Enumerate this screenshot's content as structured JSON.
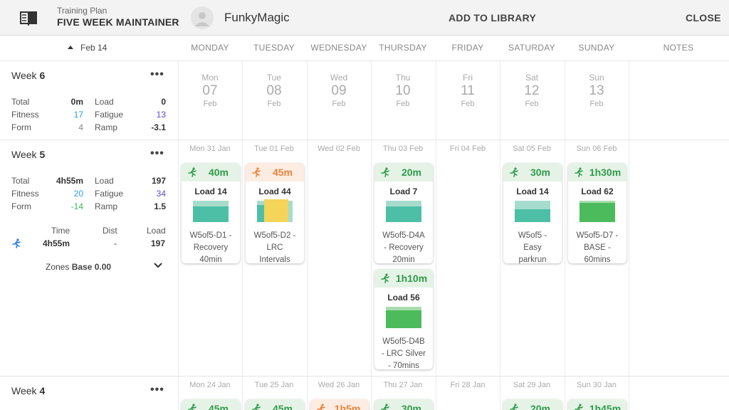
{
  "topbar": {
    "plan_label": "Training Plan",
    "plan_title": "FIVE WEEK MAINTAINER",
    "username": "FunkyMagic",
    "add_to_library": "ADD TO LIBRARY",
    "close": "CLOSE"
  },
  "header": {
    "date_nav": "Feb 14",
    "columns": [
      "MONDAY",
      "TUESDAY",
      "WEDNESDAY",
      "THURSDAY",
      "FRIDAY",
      "SATURDAY",
      "SUNDAY",
      "NOTES"
    ]
  },
  "week6": {
    "label": "Week",
    "number": "6",
    "stats": {
      "total_label": "Total",
      "total": "0m",
      "load_label": "Load",
      "load": "0",
      "fitness_label": "Fitness",
      "fitness": "17",
      "fatigue_label": "Fatigue",
      "fatigue": "13",
      "form_label": "Form",
      "form": "4",
      "ramp_label": "Ramp",
      "ramp": "-3.1"
    },
    "days": [
      {
        "dn": "Mon",
        "num": "07",
        "mon": "Feb"
      },
      {
        "dn": "Tue",
        "num": "08",
        "mon": "Feb"
      },
      {
        "dn": "Wed",
        "num": "09",
        "mon": "Feb"
      },
      {
        "dn": "Thu",
        "num": "10",
        "mon": "Feb"
      },
      {
        "dn": "Fri",
        "num": "11",
        "mon": "Feb"
      },
      {
        "dn": "Sat",
        "num": "12",
        "mon": "Feb"
      },
      {
        "dn": "Sun",
        "num": "13",
        "mon": "Feb"
      }
    ]
  },
  "week5": {
    "label": "Week",
    "number": "5",
    "stats": {
      "total_label": "Total",
      "total": "4h55m",
      "load_label": "Load",
      "load": "197",
      "fitness_label": "Fitness",
      "fitness": "20",
      "fatigue_label": "Fatigue",
      "fatigue": "34",
      "form_label": "Form",
      "form": "-14",
      "ramp_label": "Ramp",
      "ramp": "1.5"
    },
    "activity_table": {
      "time_h": "Time",
      "dist_h": "Dist",
      "load_h": "Load",
      "time": "4h55m",
      "dist": "-",
      "load": "197"
    },
    "zones_label": "Zones",
    "zones_value": "Base 0.00",
    "dates": [
      "Mon 31 Jan",
      "Tue 01 Feb",
      "Wed 02 Feb",
      "Thu 03 Feb",
      "Fri 04 Feb",
      "Sat 05 Feb",
      "Sun 06 Feb"
    ],
    "cards": [
      {
        "duration": "40m",
        "load": "Load 14",
        "name1": "W5of5-D1 -",
        "name2": "Recovery",
        "name3": "40min"
      },
      {
        "duration": "45m",
        "load": "Load 44",
        "name1": "W5of5-D2 -",
        "name2": "LRC",
        "name3": "Intervals"
      },
      {
        "duration": "20m",
        "load": "Load 7",
        "name1": "W5of5-D4A",
        "name2": "- Recovery",
        "name3": "20min"
      },
      {
        "duration": "1h10m",
        "load": "Load 56",
        "name1": "W5of5-D4B",
        "name2": "- LRC Silver",
        "name3": "- 70mins"
      },
      {
        "duration": "30m",
        "load": "Load 14",
        "name1": "W5of5 -",
        "name2": "Easy",
        "name3": "parkrun"
      },
      {
        "duration": "1h30m",
        "load": "Load 62",
        "name1": "W5of5-D7 -",
        "name2": "BASE -",
        "name3": "60mins"
      }
    ]
  },
  "week4": {
    "label": "Week",
    "number": "4",
    "dates": [
      "Mon 24 Jan",
      "Tue 25 Jan",
      "Wed 26 Jan",
      "Thu 27 Jan",
      "Fri 28 Jan",
      "Sat 29 Jan",
      "Sun 30 Jan"
    ],
    "durations": [
      "45m",
      "45m",
      "1h5m",
      "30m",
      "20m",
      "1h45m"
    ]
  },
  "colors": {
    "green_text": "#2f9b4a",
    "orange_text": "#e8833a",
    "teal_bar": "#4dbfa6",
    "green_bar": "#4cbb5c",
    "yellow_bar": "#f5d45a"
  }
}
